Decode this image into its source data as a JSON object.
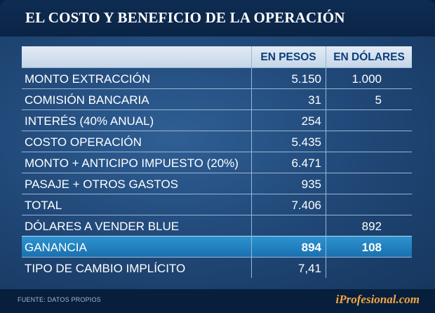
{
  "header": {
    "title": "EL COSTO Y BENEFICIO DE LA OPERACIÓN"
  },
  "table": {
    "columns": [
      "",
      "EN PESOS",
      "EN DÓLARES"
    ],
    "rows": [
      {
        "label": "MONTO EXTRACCIÓN",
        "pesos": "5.150",
        "dolares": "1.000"
      },
      {
        "label": "COMISIÓN BANCARIA",
        "pesos": "31",
        "dolares": "5"
      },
      {
        "label": "INTERÉS (40% ANUAL)",
        "pesos": "254",
        "dolares": ""
      },
      {
        "label": "COSTO OPERACIÓN",
        "pesos": "5.435",
        "dolares": ""
      },
      {
        "label": "MONTO + ANTICIPO IMPUESTO (20%)",
        "pesos": "6.471",
        "dolares": ""
      },
      {
        "label": "PASAJE + OTROS GASTOS",
        "pesos": "935",
        "dolares": ""
      },
      {
        "label": "TOTAL",
        "pesos": "7.406",
        "dolares": ""
      },
      {
        "label": "DÓLARES A VENDER BLUE",
        "pesos": "",
        "dolares": "892"
      },
      {
        "label": "GANANCIA",
        "pesos": "894",
        "dolares": "108"
      },
      {
        "label": "TIPO DE CAMBIO IMPLÍCITO",
        "pesos": "7,41",
        "dolares": ""
      }
    ]
  },
  "footer": {
    "source": "FUENTE: DATOS PROPIOS",
    "brand": "iProfesional.com"
  },
  "colors": {
    "background": "#071f3c",
    "panel": "#1f4675",
    "header_row": "#d6e2ef",
    "highlight_row": "#1f7fbf",
    "brand": "#f2a641"
  }
}
